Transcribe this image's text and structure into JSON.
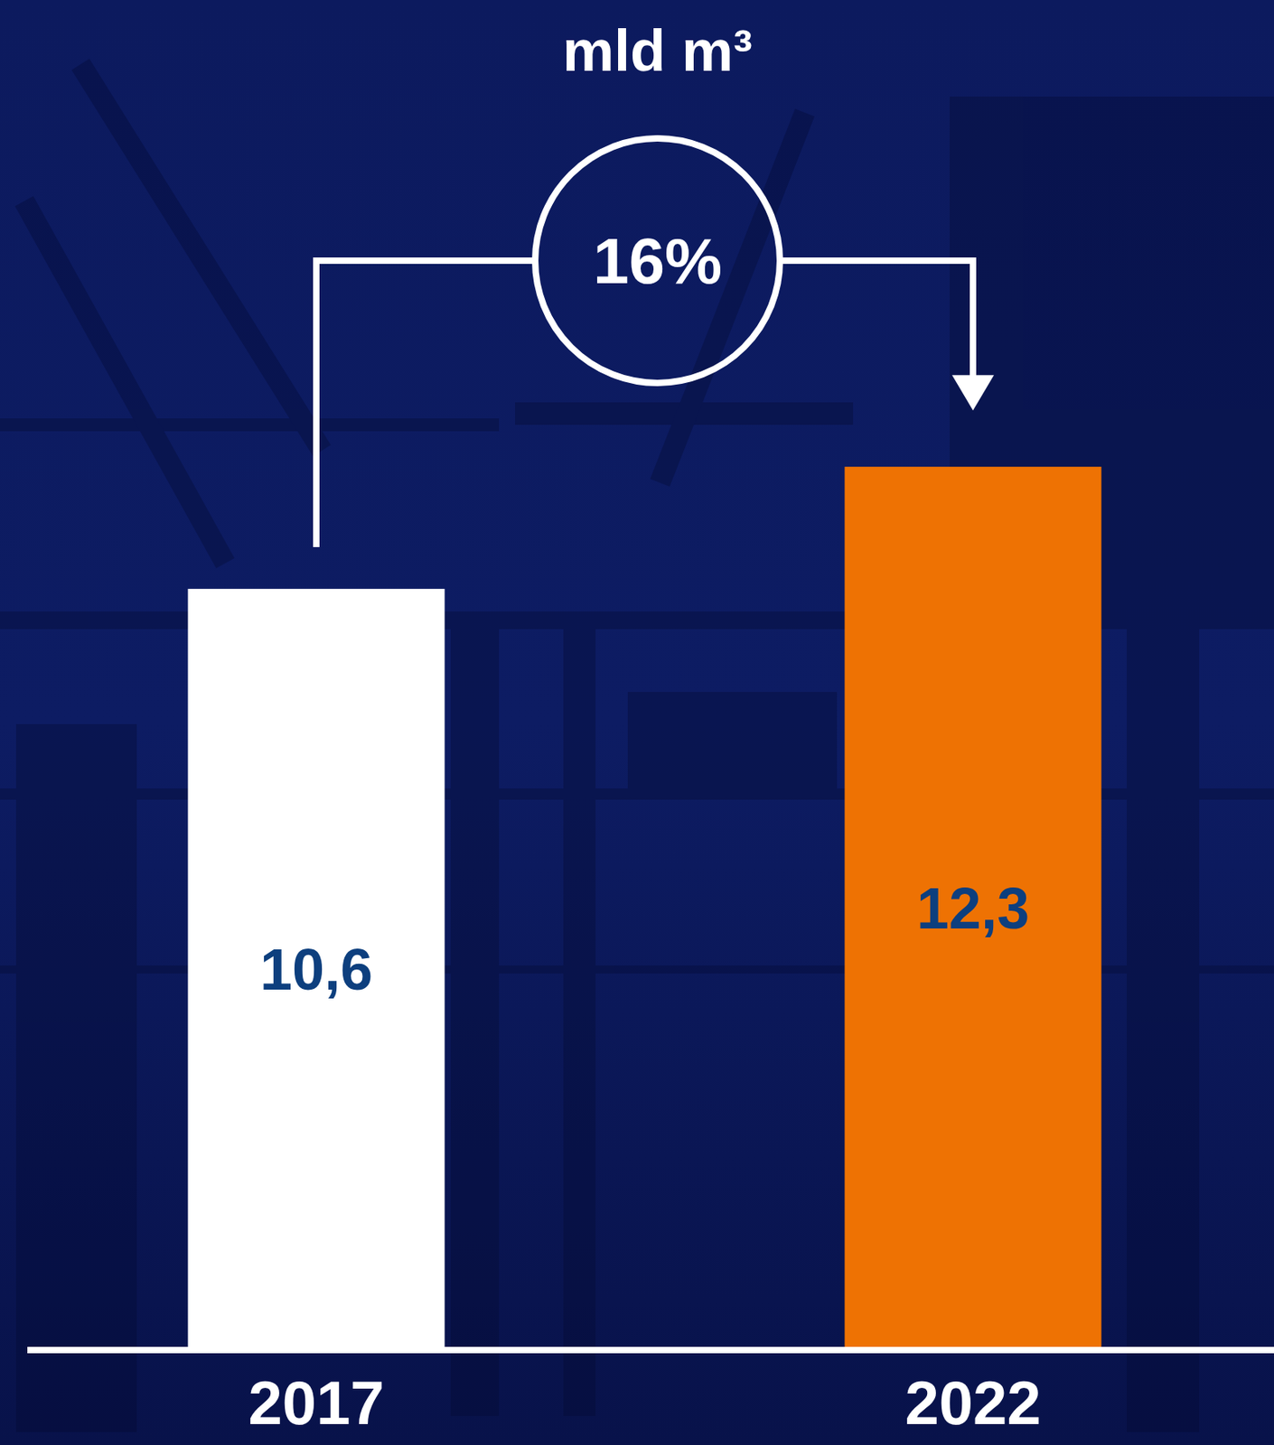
{
  "chart_data": {
    "type": "bar",
    "title": "mld m³",
    "categories": [
      "2017",
      "2022"
    ],
    "values": [
      10.6,
      12.3
    ],
    "value_labels": [
      "10,6",
      "12,3"
    ],
    "colors": [
      "#ffffff",
      "#ee7203"
    ],
    "ylim": [
      0,
      18.8
    ],
    "tick_labels": "x",
    "grid": false,
    "data_labels": true,
    "annotations": [
      {
        "text": "16%"
      }
    ]
  }
}
